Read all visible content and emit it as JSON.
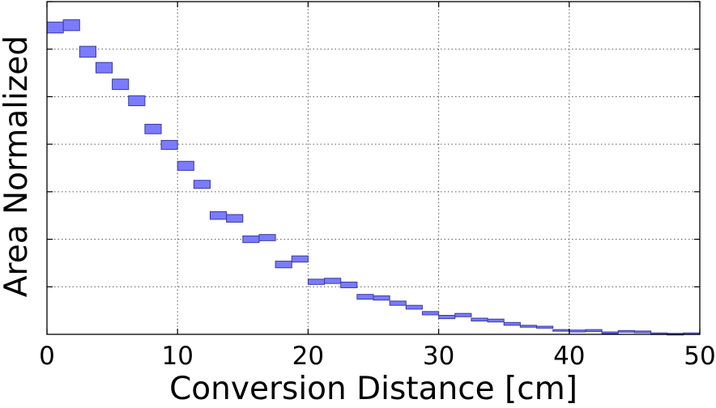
{
  "chart_data": {
    "type": "bar",
    "subtype": "error-band-boxes",
    "title": "",
    "xlabel": "Conversion Distance [cm]",
    "ylabel": "Area Normalized",
    "xlim": [
      0,
      50
    ],
    "ylim": [
      0,
      7
    ],
    "x_ticks": [
      "0",
      "10",
      "20",
      "30",
      "40",
      "50"
    ],
    "x_tick_values": [
      0,
      10,
      20,
      30,
      40,
      50
    ],
    "y_tick_values": [
      1,
      2,
      3,
      4,
      5,
      6,
      7
    ],
    "y_tick_labels_shown": false,
    "grid": true,
    "grid_style": "dotted",
    "colors": {
      "box_fill": "#7b7bff",
      "box_edge": "#3a3a9e",
      "axis": "#000000",
      "grid": "#555555"
    },
    "bin_width": 1.25,
    "series": [
      {
        "bins": [
          {
            "x0": 0.0,
            "x1": 1.25,
            "lo": 6.34,
            "hi": 6.57
          },
          {
            "x0": 1.25,
            "x1": 2.5,
            "lo": 6.39,
            "hi": 6.62
          },
          {
            "x0": 2.5,
            "x1": 3.75,
            "lo": 5.83,
            "hi": 6.06
          },
          {
            "x0": 3.75,
            "x1": 5.0,
            "lo": 5.5,
            "hi": 5.72
          },
          {
            "x0": 5.0,
            "x1": 6.25,
            "lo": 5.15,
            "hi": 5.37
          },
          {
            "x0": 6.25,
            "x1": 7.5,
            "lo": 4.81,
            "hi": 5.02
          },
          {
            "x0": 7.5,
            "x1": 8.75,
            "lo": 4.22,
            "hi": 4.42
          },
          {
            "x0": 8.75,
            "x1": 10.0,
            "lo": 3.89,
            "hi": 4.08
          },
          {
            "x0": 10.0,
            "x1": 11.25,
            "lo": 3.45,
            "hi": 3.64
          },
          {
            "x0": 11.25,
            "x1": 12.5,
            "lo": 3.07,
            "hi": 3.24
          },
          {
            "x0": 12.5,
            "x1": 13.75,
            "lo": 2.42,
            "hi": 2.58
          },
          {
            "x0": 13.75,
            "x1": 15.0,
            "lo": 2.36,
            "hi": 2.52
          },
          {
            "x0": 15.0,
            "x1": 16.25,
            "lo": 1.93,
            "hi": 2.07
          },
          {
            "x0": 16.25,
            "x1": 17.5,
            "lo": 1.97,
            "hi": 2.1
          },
          {
            "x0": 17.5,
            "x1": 18.75,
            "lo": 1.4,
            "hi": 1.54
          },
          {
            "x0": 18.75,
            "x1": 20.0,
            "lo": 1.52,
            "hi": 1.65
          },
          {
            "x0": 20.0,
            "x1": 21.25,
            "lo": 1.05,
            "hi": 1.16
          },
          {
            "x0": 21.25,
            "x1": 22.5,
            "lo": 1.07,
            "hi": 1.18
          },
          {
            "x0": 22.5,
            "x1": 23.75,
            "lo": 0.98,
            "hi": 1.1
          },
          {
            "x0": 23.75,
            "x1": 25.0,
            "lo": 0.74,
            "hi": 0.84
          },
          {
            "x0": 25.0,
            "x1": 26.25,
            "lo": 0.72,
            "hi": 0.81
          },
          {
            "x0": 26.25,
            "x1": 27.5,
            "lo": 0.61,
            "hi": 0.7
          },
          {
            "x0": 27.5,
            "x1": 28.75,
            "lo": 0.53,
            "hi": 0.61
          },
          {
            "x0": 28.75,
            "x1": 30.0,
            "lo": 0.41,
            "hi": 0.48
          },
          {
            "x0": 30.0,
            "x1": 31.25,
            "lo": 0.33,
            "hi": 0.4
          },
          {
            "x0": 31.25,
            "x1": 32.5,
            "lo": 0.37,
            "hi": 0.44
          },
          {
            "x0": 32.5,
            "x1": 33.75,
            "lo": 0.28,
            "hi": 0.34
          },
          {
            "x0": 33.75,
            "x1": 35.0,
            "lo": 0.26,
            "hi": 0.32
          },
          {
            "x0": 35.0,
            "x1": 36.25,
            "lo": 0.19,
            "hi": 0.25
          },
          {
            "x0": 36.25,
            "x1": 37.5,
            "lo": 0.15,
            "hi": 0.19
          },
          {
            "x0": 37.5,
            "x1": 38.75,
            "lo": 0.13,
            "hi": 0.17
          },
          {
            "x0": 38.75,
            "x1": 40.0,
            "lo": 0.07,
            "hi": 0.1
          },
          {
            "x0": 40.0,
            "x1": 41.25,
            "lo": 0.05,
            "hi": 0.09
          },
          {
            "x0": 41.25,
            "x1": 42.5,
            "lo": 0.06,
            "hi": 0.1
          },
          {
            "x0": 42.5,
            "x1": 43.75,
            "lo": 0.02,
            "hi": 0.05
          },
          {
            "x0": 43.75,
            "x1": 45.0,
            "lo": 0.05,
            "hi": 0.08
          },
          {
            "x0": 45.0,
            "x1": 46.25,
            "lo": 0.04,
            "hi": 0.07
          },
          {
            "x0": 46.25,
            "x1": 47.5,
            "lo": 0.01,
            "hi": 0.03
          },
          {
            "x0": 47.5,
            "x1": 48.75,
            "lo": 0.0,
            "hi": 0.02
          },
          {
            "x0": 48.75,
            "x1": 50.0,
            "lo": 0.01,
            "hi": 0.03
          }
        ]
      }
    ]
  }
}
